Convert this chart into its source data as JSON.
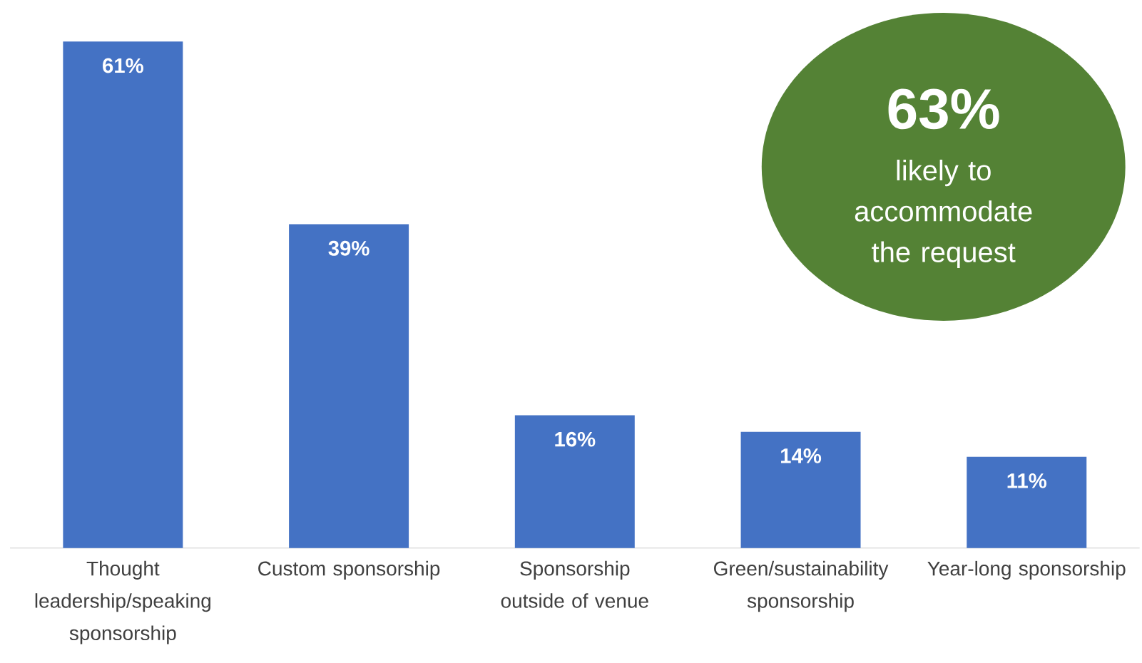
{
  "chart_data": {
    "type": "bar",
    "categories": [
      "Thought leadership/speaking sponsorship",
      "Custom sponsorship",
      "Sponsorship outside of venue",
      "Green/sustainability sponsorship",
      "Year-long sponsorship"
    ],
    "values": [
      61,
      39,
      16,
      14,
      11
    ],
    "value_labels": [
      "61%",
      "39%",
      "16%",
      "14%",
      "11%"
    ],
    "color": "#4472c4",
    "annotations": [
      "63%",
      "likely to accommodate the request"
    ]
  }
}
